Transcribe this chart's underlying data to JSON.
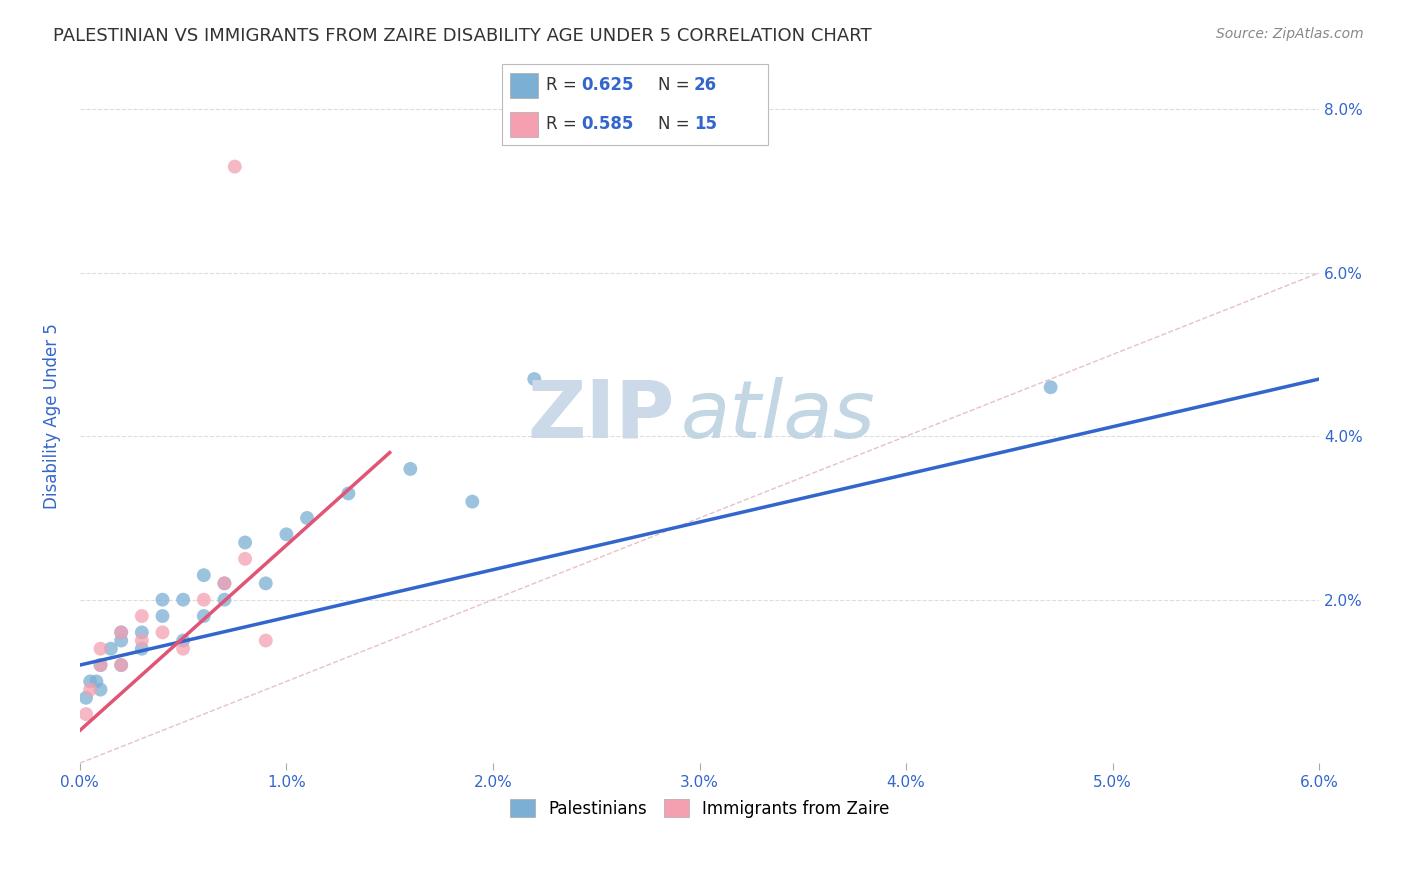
{
  "title": "PALESTINIAN VS IMMIGRANTS FROM ZAIRE DISABILITY AGE UNDER 5 CORRELATION CHART",
  "source": "Source: ZipAtlas.com",
  "ylabel": "Disability Age Under 5",
  "xlim": [
    0.0,
    0.06
  ],
  "ylim": [
    0.0,
    0.085
  ],
  "xticks": [
    0.0,
    0.01,
    0.02,
    0.03,
    0.04,
    0.05,
    0.06
  ],
  "yticks": [
    0.0,
    0.02,
    0.04,
    0.06,
    0.08
  ],
  "xtick_labels": [
    "0.0%",
    "1.0%",
    "2.0%",
    "3.0%",
    "4.0%",
    "5.0%",
    "6.0%"
  ],
  "ytick_labels": [
    "",
    "2.0%",
    "4.0%",
    "6.0%",
    "8.0%"
  ],
  "palestinians_x": [
    0.0003,
    0.0005,
    0.0008,
    0.001,
    0.001,
    0.0015,
    0.002,
    0.002,
    0.002,
    0.003,
    0.003,
    0.004,
    0.004,
    0.005,
    0.005,
    0.006,
    0.006,
    0.007,
    0.007,
    0.008,
    0.009,
    0.01,
    0.011,
    0.013,
    0.016,
    0.019,
    0.022,
    0.047
  ],
  "palestinians_y": [
    0.008,
    0.01,
    0.01,
    0.009,
    0.012,
    0.014,
    0.012,
    0.015,
    0.016,
    0.014,
    0.016,
    0.018,
    0.02,
    0.015,
    0.02,
    0.018,
    0.023,
    0.022,
    0.02,
    0.027,
    0.022,
    0.028,
    0.03,
    0.033,
    0.036,
    0.032,
    0.047,
    0.046
  ],
  "zaire_x": [
    0.0003,
    0.0005,
    0.001,
    0.001,
    0.002,
    0.002,
    0.003,
    0.003,
    0.004,
    0.005,
    0.006,
    0.007,
    0.008,
    0.009,
    0.0075
  ],
  "zaire_y": [
    0.006,
    0.009,
    0.012,
    0.014,
    0.012,
    0.016,
    0.015,
    0.018,
    0.016,
    0.014,
    0.02,
    0.022,
    0.025,
    0.015,
    0.073
  ],
  "blue_line_x": [
    0.0,
    0.06
  ],
  "blue_line_y": [
    0.012,
    0.047
  ],
  "pink_line_x": [
    0.0,
    0.015
  ],
  "pink_line_y": [
    0.004,
    0.038
  ],
  "marker_size": 100,
  "blue_color": "#7bafd4",
  "pink_color": "#f4a0b0",
  "blue_line_color": "#3366cc",
  "pink_line_color": "#e05575",
  "background_color": "#ffffff",
  "grid_color": "#dddddd",
  "title_color": "#333333",
  "axis_label_color": "#3366cc",
  "right_ytick_color": "#3366cc",
  "legend_R_color": "#3366cc",
  "legend_N_color": "#3366cc"
}
